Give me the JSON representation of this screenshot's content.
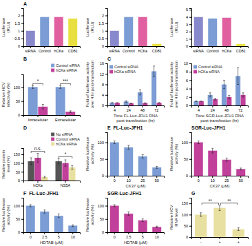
{
  "chart_data": [
    {
      "type": "bar",
      "title": "A",
      "categories": [
        "siRNA",
        "Control",
        "hCKa",
        "CD81"
      ],
      "values": [
        1.0,
        1.9,
        1.9,
        1.8
      ],
      "colors": [
        "#8888cc",
        "#7b9cd4",
        "#e060a0",
        "#e8e040"
      ],
      "ylabel": "Luciferase\n(RLU)",
      "ylim": [
        0,
        2.47
      ],
      "yticks": [
        0,
        0.5,
        1,
        1.5,
        2
      ]
    },
    {
      "type": "bar",
      "categories": [
        "siRNA",
        "Control",
        "hCKa",
        "CD81"
      ],
      "values": [
        1.0,
        1.9,
        1.9,
        0.15
      ],
      "colors": [
        "#8888cc",
        "#7b9cd4",
        "#e060a0",
        "#e8e040"
      ],
      "ylabel": "Luciferase\n(RLU)",
      "ylim": [
        0,
        2.47
      ],
      "yticks": [
        0,
        0.5,
        1,
        1.5,
        2
      ]
    },
    {
      "type": "bar",
      "categories": [
        "siRNA",
        "Control",
        "hCKa",
        "CD81"
      ],
      "values": [
        4.0,
        3.8,
        3.9,
        0.3
      ],
      "colors": [
        "#8888cc",
        "#7b9cd4",
        "#e060a0",
        "#e8e040"
      ],
      "ylabel": "Luciferase\n(RLU)",
      "ylim": [
        0,
        5.2
      ],
      "yticks": [
        0,
        1,
        2,
        3,
        4,
        5
      ]
    },
    {
      "type": "bar",
      "title": "B",
      "categories": [
        "Intracellular",
        "Extracellular"
      ],
      "series": [
        {
          "name": "Control siRNA",
          "color": "#7b9cd4",
          "values": [
            100,
            100
          ],
          "errors": [
            5,
            5
          ]
        },
        {
          "name": "hCKa siRNA",
          "color": "#c0409a",
          "values": [
            30,
            12
          ],
          "errors": [
            8,
            3
          ]
        }
      ],
      "ylabel": "Relative HCV\ninfectivity (%)",
      "ylim": [
        0,
        145
      ],
      "yticks": [
        0,
        50,
        100
      ],
      "legend": "upper right",
      "annotations": [
        "*",
        "***"
      ]
    },
    {
      "type": "bar",
      "title": "C",
      "categories": [
        "4",
        "24",
        "48",
        "72"
      ],
      "series": [
        {
          "name": "Control siRNA",
          "color": "#7b9cd4",
          "values": [
            1,
            1.5,
            5,
            13
          ],
          "errors": [
            0.1,
            0.3,
            1,
            2
          ]
        },
        {
          "name": "hCKa siRNA",
          "color": "#c0409a",
          "values": [
            1,
            0.8,
            0.9,
            1.0
          ],
          "errors": [
            0.05,
            0.05,
            0.1,
            0.1
          ]
        }
      ],
      "ylabel": "Fold of luciferase activity\nover 4 hr post-transfection",
      "xlabel": "Time FL-Luc-JFH1 RNA\npost-transfection (hr)",
      "ylim": [
        0,
        16
      ],
      "yticks": [
        0,
        4,
        8,
        12,
        16
      ],
      "legend": "upper left"
    },
    {
      "type": "bar",
      "categories": [
        "4",
        "24",
        "48",
        "72"
      ],
      "series": [
        {
          "name": "Control siRNA",
          "color": "#7b9cd4",
          "values": [
            1,
            2.5,
            5,
            7
          ],
          "errors": [
            0.1,
            0.5,
            1,
            2
          ]
        },
        {
          "name": "hCKa siRNA",
          "color": "#c0409a",
          "values": [
            1,
            1.5,
            2,
            2.5
          ],
          "errors": [
            0.05,
            0.2,
            0.4,
            0.5
          ]
        }
      ],
      "ylabel": "Fold of luciferase activity\nover 4 hr post-transfection",
      "xlabel": "Time SGR-Luc-JFH1 RNA\npost-transfection (hr)",
      "ylim": [
        0,
        10
      ],
      "yticks": [
        0,
        2,
        4,
        6,
        8,
        10
      ],
      "legend": "upper left"
    },
    {
      "type": "bar",
      "title": "D",
      "categories": [
        "hCKa",
        "NS5A"
      ],
      "series": [
        {
          "name": "No siRNA",
          "color": "#555555",
          "values": [
            110,
            110
          ],
          "errors": [
            20,
            15
          ]
        },
        {
          "name": "Control siRNA",
          "color": "#c0409a",
          "values": [
            130,
            100
          ],
          "errors": [
            25,
            18
          ]
        },
        {
          "name": "hCKa siRNA",
          "color": "#e8e0a0",
          "values": [
            20,
            75
          ],
          "errors": [
            5,
            10
          ]
        }
      ],
      "ylabel": "Relative protein\nlevel (%)",
      "ylim": [
        0,
        185
      ],
      "yticks": [
        0,
        50,
        100,
        150
      ],
      "legend": "upper right",
      "annotations": [
        "n.s.",
        "*"
      ]
    },
    {
      "type": "bar",
      "title": "E  FL-Luc-JFH1",
      "categories": [
        "0",
        "10",
        "25",
        "50"
      ],
      "values": [
        100,
        85,
        58,
        25
      ],
      "errors": [
        4,
        6,
        5,
        3
      ],
      "color": "#7b9cd4",
      "xlabel": "CK37 (μM)",
      "ylabel": "Relative luciferase\nactivity (%)",
      "ylim": [
        0,
        130
      ],
      "yticks": [
        0,
        50,
        100
      ]
    },
    {
      "type": "bar",
      "title": "SGR-Luc-JFH1",
      "categories": [
        "0",
        "10",
        "25",
        "50"
      ],
      "values": [
        100,
        75,
        48,
        20
      ],
      "errors": [
        4,
        7,
        5,
        3
      ],
      "color": "#c0409a",
      "xlabel": "CK37 (μM)",
      "ylabel": "Relative luciferase\nactivity (%)",
      "ylim": [
        0,
        130
      ],
      "yticks": [
        0,
        50,
        100
      ]
    },
    {
      "type": "bar",
      "title": "F  FL-Luc-JFH1",
      "categories": [
        "0",
        "2.5",
        "5",
        "10"
      ],
      "values": [
        100,
        78,
        62,
        25
      ],
      "errors": [
        4,
        6,
        7,
        3
      ],
      "color": "#7b9cd4",
      "xlabel": "HDTAB (μM)",
      "ylabel": "Relative luciferase\nactivity (%)",
      "ylim": [
        0,
        130
      ],
      "yticks": [
        0,
        50,
        100
      ]
    },
    {
      "type": "bar",
      "title": "SGR-Luc-JFH1",
      "categories": [
        "0",
        "2.5",
        "5",
        "10"
      ],
      "values": [
        100,
        70,
        45,
        20
      ],
      "errors": [
        4,
        7,
        5,
        3
      ],
      "color": "#c0409a",
      "xlabel": "HDTAB (μM)",
      "ylabel": "Relative luciferase\nactivity (%)",
      "ylim": [
        0,
        130
      ],
      "yticks": [
        0,
        50,
        100
      ]
    },
    {
      "type": "bar",
      "title": "G",
      "categories": [
        "-",
        "+",
        "+"
      ],
      "values": [
        100,
        130,
        35
      ],
      "errors": [
        8,
        12,
        6
      ],
      "color": "#e8e0a0",
      "ylabel": "Relative HCV\nRNA level",
      "ylim": [
        0,
        175
      ],
      "yticks": [
        0,
        50,
        100,
        150
      ],
      "annotations": [
        "**",
        "**"
      ]
    }
  ]
}
